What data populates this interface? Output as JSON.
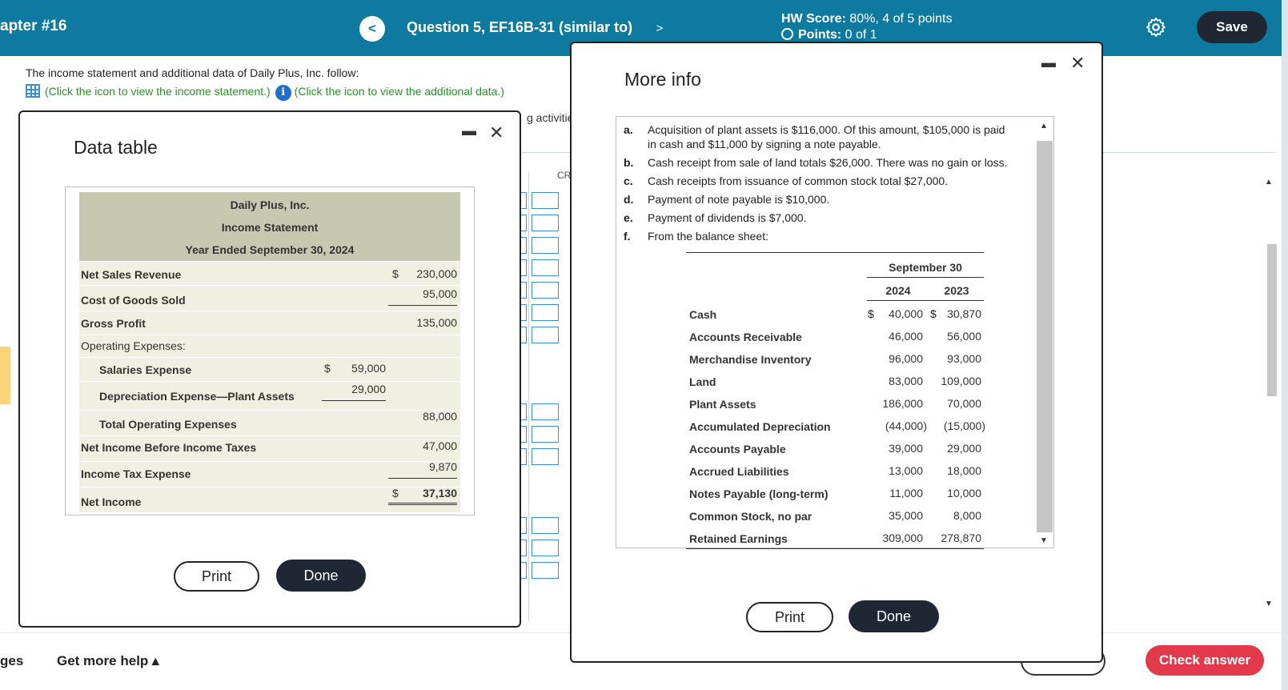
{
  "header": {
    "chapter": "apter #16",
    "prev_label": "<",
    "question": "Question 5, EF16B-31 (similar to)",
    "next_label": ">",
    "hw_score_label": "HW Score:",
    "hw_score_value": "80%, 4 of 5 points",
    "points_label": "Points:",
    "points_value": "0 of 1",
    "save_label": "Save"
  },
  "page": {
    "intro": "The income statement and additional data of Daily Plus, Inc. follow:",
    "income_link": "(Click the icon to view the income statement.)",
    "info_icon_glyph": "i",
    "additional_link": "(Click the icon to view the additional data.)",
    "behind_text": "g activities",
    "behind_cr": "CR"
  },
  "footer": {
    "left_fragment": "ges",
    "help_label": "Get more help ▴",
    "check_label": "Check answer"
  },
  "data_table": {
    "title": "Data table",
    "minimize_glyph": "▬",
    "close_glyph": "✕",
    "company": "Daily Plus, Inc.",
    "statement": "Income Statement",
    "period": "Year Ended September 30, 2024",
    "rows": [
      {
        "label": "Net Sales Revenue",
        "cur2": "$",
        "col2": "230,000"
      },
      {
        "label": "Cost of Goods Sold",
        "col2": "95,000"
      },
      {
        "label": "Gross Profit",
        "col2": "135,000"
      },
      {
        "label": "Operating Expenses:"
      },
      {
        "label": "Salaries Expense",
        "cur1": "$",
        "col1": "59,000"
      },
      {
        "label": "Depreciation Expense—Plant Assets",
        "col1": "29,000"
      },
      {
        "label": "Total Operating Expenses",
        "col2": "88,000"
      },
      {
        "label": "Net Income Before Income Taxes",
        "col2": "47,000"
      },
      {
        "label": "Income Tax Expense",
        "col2": "9,870"
      },
      {
        "label": "Net Income",
        "cur2": "$",
        "col2": "37,130"
      }
    ],
    "print_label": "Print",
    "done_label": "Done"
  },
  "more_info": {
    "title": "More info",
    "minimize_glyph": "▬",
    "close_glyph": "✕",
    "items": [
      {
        "letter": "a.",
        "text": "Acquisition of plant assets is $116,000. Of this amount, $105,000 is paid",
        "text2": "in cash and $11,000 by signing a note payable."
      },
      {
        "letter": "b.",
        "text": "Cash receipt from sale of land totals $26,000. There was no gain or loss."
      },
      {
        "letter": "c.",
        "text": "Cash receipts from issuance of common stock total $27,000."
      },
      {
        "letter": "d.",
        "text": "Payment of note payable is $10,000."
      },
      {
        "letter": "e.",
        "text": "Payment of dividends is $7,000."
      },
      {
        "letter": "f.",
        "text": "From the balance sheet:"
      }
    ],
    "balance_sheet": {
      "header": "September 30",
      "year1": "2024",
      "year2": "2023",
      "rows": [
        {
          "label": "Cash",
          "cur": "$",
          "v1": "40,000",
          "cur2": "$",
          "v2": "30,870"
        },
        {
          "label": "Accounts Receivable",
          "v1": "46,000",
          "v2": "56,000"
        },
        {
          "label": "Merchandise Inventory",
          "v1": "96,000",
          "v2": "93,000"
        },
        {
          "label": "Land",
          "v1": "83,000",
          "v2": "109,000"
        },
        {
          "label": "Plant Assets",
          "v1": "186,000",
          "v2": "70,000"
        },
        {
          "label": "Accumulated Depreciation",
          "v1": "(44,000)",
          "v2": "(15,000)"
        },
        {
          "label": "Accounts Payable",
          "v1": "39,000",
          "v2": "29,000"
        },
        {
          "label": "Accrued Liabilities",
          "v1": "13,000",
          "v2": "18,000"
        },
        {
          "label": "Notes Payable (long-term)",
          "v1": "11,000",
          "v2": "10,000"
        },
        {
          "label": "Common Stock, no par",
          "v1": "35,000",
          "v2": "8,000"
        },
        {
          "label": "Retained Earnings",
          "v1": "309,000",
          "v2": "278,870"
        }
      ]
    },
    "print_label": "Print",
    "done_label": "Done"
  },
  "colors": {
    "header_bg": "#0f7aa0",
    "accent_green": "#2a8f2a",
    "check_answer": "#e23a4b",
    "dark_button": "#1e2732",
    "table_header": "#c8c8b0",
    "table_row": "#f0f0e2"
  }
}
